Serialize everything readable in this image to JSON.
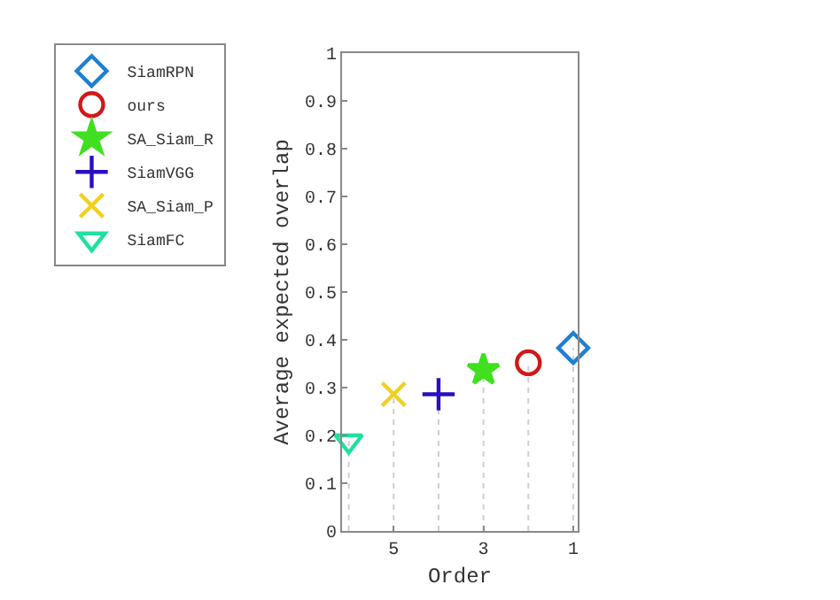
{
  "chart_data": {
    "type": "lollipop",
    "xlabel": "Order",
    "ylabel": "Average expected overlap",
    "xlim": [
      6.15,
      0.9
    ],
    "xticks": [
      5,
      3,
      1
    ],
    "ylim": [
      0,
      1
    ],
    "yticks": [
      0,
      0.1,
      0.2,
      0.3,
      0.4,
      0.5,
      0.6,
      0.7,
      0.8,
      0.9,
      1
    ],
    "grid": false,
    "legend": "top left",
    "line_style": "dotted",
    "series": [
      {
        "name": "SiamRPN",
        "color": "#1f7fd0",
        "marker": "diamond",
        "x": [
          1
        ],
        "values": [
          0.383
        ]
      },
      {
        "name": "ours",
        "color": "#d01818",
        "marker": "circle",
        "x": [
          2
        ],
        "values": [
          0.352
        ]
      },
      {
        "name": "SA_Siam_R",
        "color": "#40e020",
        "marker": "star",
        "x": [
          3
        ],
        "values": [
          0.337
        ]
      },
      {
        "name": "SiamVGG",
        "color": "#2810c0",
        "marker": "cross",
        "x": [
          4
        ],
        "values": [
          0.286
        ]
      },
      {
        "name": "SA_Siam_P",
        "color": "#f0d020",
        "marker": "x",
        "x": [
          5
        ],
        "values": [
          0.286
        ]
      },
      {
        "name": "SiamFC",
        "color": "#20e0a0",
        "marker": "triangle",
        "x": [
          6
        ],
        "values": [
          0.188
        ]
      }
    ]
  }
}
